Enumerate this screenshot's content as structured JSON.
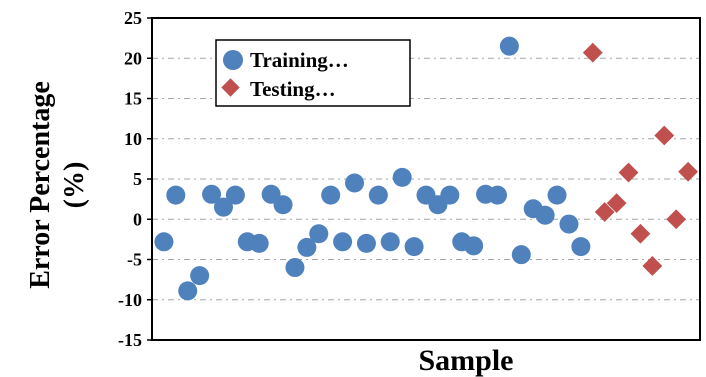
{
  "chart_data": {
    "type": "scatter",
    "xlabel": "Sample",
    "ylabel_lines": [
      "Error Percentage",
      "(%)"
    ],
    "ylim": [
      -15,
      25
    ],
    "yticks": [
      25,
      20,
      15,
      10,
      5,
      0,
      -5,
      -10,
      -15
    ],
    "grid": true,
    "legend_position": "top-left",
    "series": [
      {
        "name": "Training…",
        "marker": "circle",
        "color": "#4f81bd",
        "x": [
          1,
          2,
          3,
          4,
          5,
          6,
          7,
          8,
          9,
          10,
          11,
          12,
          13,
          14,
          15,
          16,
          17,
          18,
          19,
          20,
          21,
          22,
          23,
          24,
          25,
          26,
          27,
          28,
          29,
          30,
          31,
          32,
          33,
          34,
          35,
          36,
          37,
          38,
          39,
          40,
          41,
          42
        ],
        "y": [
          -2.8,
          3.0,
          -8.9,
          -7.0,
          3.1,
          1.5,
          3.0,
          -2.8,
          -3.0,
          3.1,
          1.8,
          -6.0,
          -3.5,
          -1.8,
          3.0,
          -2.8,
          4.5,
          -3.0,
          3.0,
          -2.8,
          5.2,
          -3.4,
          3.0,
          1.8,
          3.0,
          -2.8,
          -3.3,
          3.1,
          3.0,
          21.5,
          -4.4,
          1.3,
          0.5,
          3.0,
          -0.6,
          -3.4,
          null,
          null,
          null,
          null,
          null,
          null
        ]
      },
      {
        "name": "Testing…",
        "marker": "diamond",
        "color": "#c0504d",
        "x": [
          37,
          38,
          39,
          40,
          41,
          42,
          43,
          44,
          45
        ],
        "y": [
          20.7,
          0.9,
          2.0,
          5.8,
          -1.8,
          -5.8,
          10.4,
          0.0,
          5.9
        ]
      }
    ],
    "x_max": 46
  },
  "colors": {
    "training": "#4f81bd",
    "testing": "#c0504d",
    "grid": "#a6a6a6"
  }
}
